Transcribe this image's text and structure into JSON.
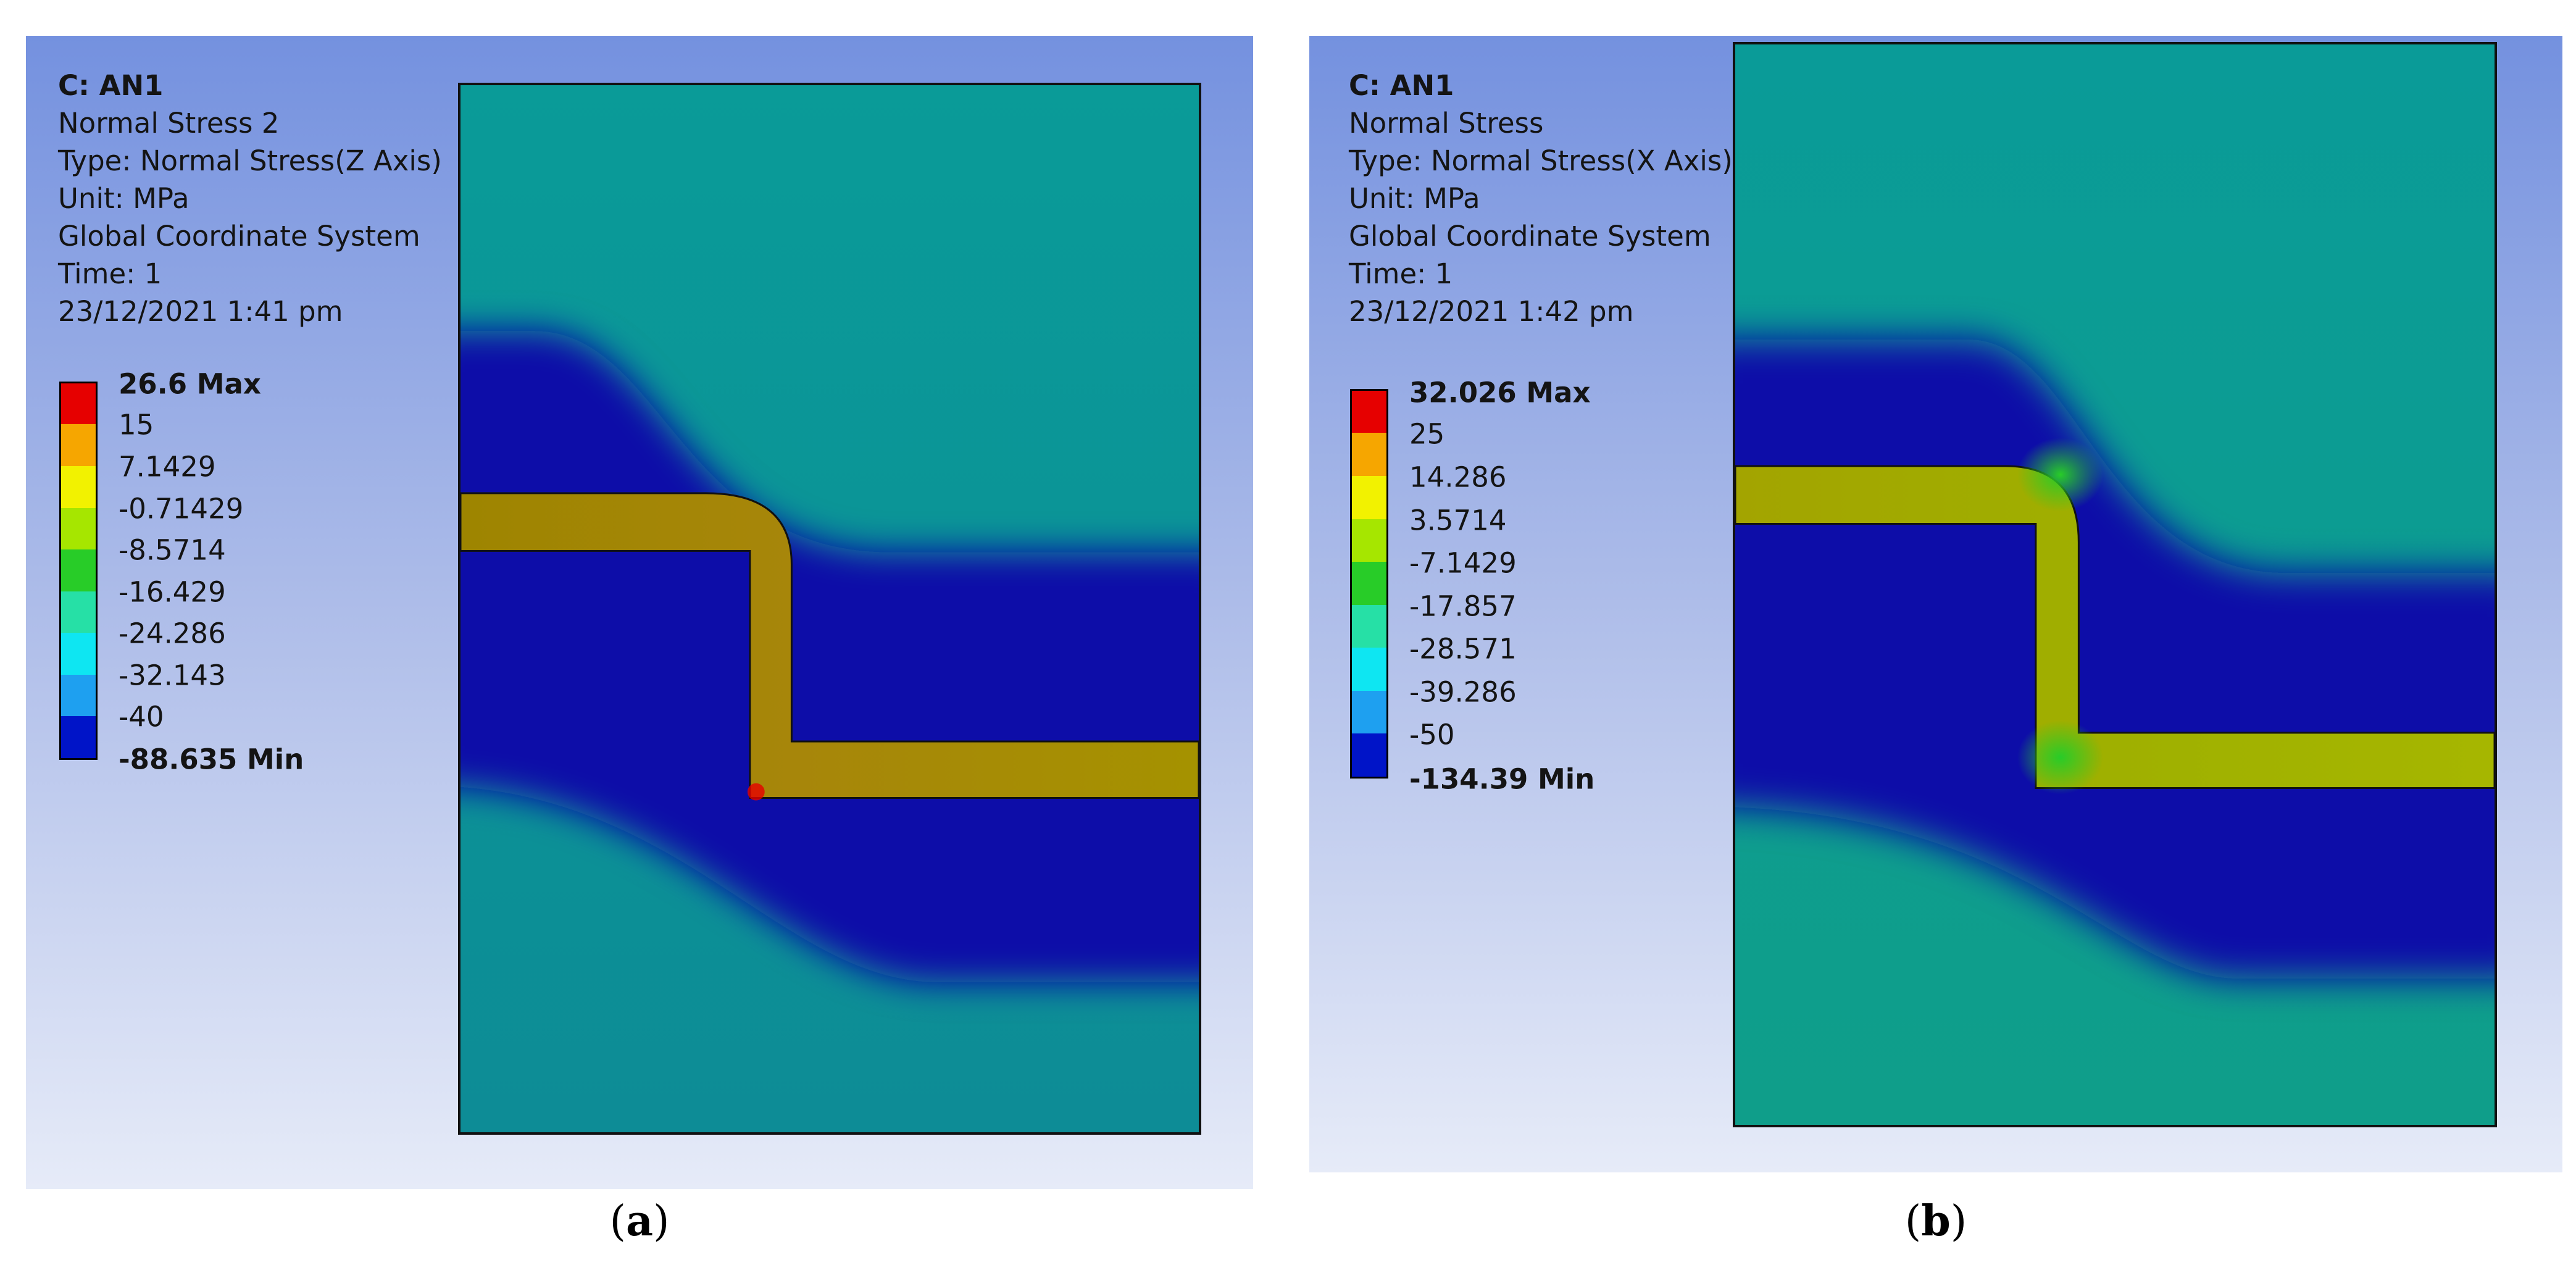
{
  "panels": [
    {
      "id": "a",
      "info": {
        "title": "C: AN1",
        "result_name": "Normal Stress 2",
        "type": "Type: Normal Stress(Z Axis)",
        "unit": "Unit: MPa",
        "coord_system": "Global Coordinate System",
        "time": "Time: 1",
        "date": "23/12/2021 1:41 pm"
      },
      "legend": {
        "max_label": "26.6 Max",
        "min_label": "-88.635 Min",
        "levels": [
          "15",
          "7.1429",
          "-0.71429",
          "-8.5714",
          "-16.429",
          "-24.286",
          "-32.143",
          "-40"
        ],
        "colors": [
          "#e60000",
          "#f6a600",
          "#f2f200",
          "#a6e600",
          "#28cc28",
          "#26e0a6",
          "#0ee6f2",
          "#1ea0f0",
          "#0014c8"
        ]
      },
      "caption": {
        "open": "(",
        "letter": "a",
        "close": ")"
      }
    },
    {
      "id": "b",
      "info": {
        "title": "C: AN1",
        "result_name": "Normal Stress",
        "type": "Type: Normal Stress(X Axis)",
        "unit": "Unit: MPa",
        "coord_system": "Global Coordinate System",
        "time": "Time: 1",
        "date": "23/12/2021 1:42 pm"
      },
      "legend": {
        "max_label": "32.026 Max",
        "min_label": "-134.39 Min",
        "levels": [
          "25",
          "14.286",
          "3.5714",
          "-7.1429",
          "-17.857",
          "-28.571",
          "-39.286",
          "-50"
        ],
        "colors": [
          "#e60000",
          "#f6a600",
          "#f2f200",
          "#a6e600",
          "#28cc28",
          "#26e0a6",
          "#0ee6f2",
          "#1ea0f0",
          "#0014c8"
        ]
      },
      "caption": {
        "open": "(",
        "letter": "b",
        "close": ")"
      }
    }
  ],
  "colors": {
    "background_top": "#7491df",
    "background_bottom": "#e6ebf8",
    "field_teal": "#0a9b98",
    "field_blue": "#0a0aa8",
    "strip_yellow": "#a28e00",
    "strip_green_yellow": "#a6b400"
  }
}
